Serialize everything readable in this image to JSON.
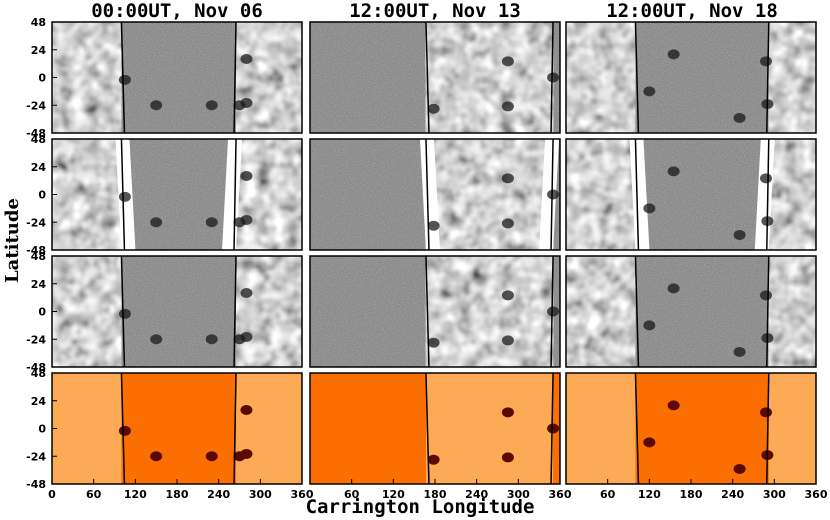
{
  "figure": {
    "column_titles": [
      "00:00UT, Nov 06",
      "12:00UT, Nov 13",
      "12:00UT, Nov 18"
    ],
    "ylabel": "Latitude",
    "xlabel": "Carrington Longitude"
  },
  "chart_data": {
    "type": "heatmap",
    "xlabel": "Carrington Longitude",
    "ylabel": "Latitude",
    "xlim": [
      0,
      360
    ],
    "ylim": [
      -48,
      48
    ],
    "y_ticks": [
      "48",
      "24",
      "0",
      "-24",
      "-48"
    ],
    "x_ticks_by_column": [
      [
        "0",
        "60",
        "120",
        "180",
        "240",
        "300",
        "360"
      ],
      [
        "60",
        "120",
        "180",
        "240",
        "300",
        "360"
      ],
      [
        "60",
        "120",
        "180",
        "240",
        "300",
        "360"
      ]
    ],
    "rows": 4,
    "columns": 3,
    "row_colormaps": [
      "gray",
      "gray",
      "gray",
      "orange"
    ],
    "panels_note_boundaries_lon": [
      [
        100,
        265
      ],
      [
        167,
        350
      ],
      [
        100,
        292
      ]
    ],
    "active_regions_lon_lat": [
      [
        [
          280,
          16
        ],
        [
          280,
          -22
        ],
        [
          270,
          -24
        ],
        [
          105,
          -2
        ],
        [
          150,
          -24
        ],
        [
          230,
          -24
        ]
      ],
      [
        [
          285,
          14
        ],
        [
          285,
          -25
        ],
        [
          178,
          -27
        ],
        [
          350,
          0
        ]
      ],
      [
        [
          288,
          14
        ],
        [
          290,
          -23
        ],
        [
          120,
          -12
        ],
        [
          155,
          20
        ],
        [
          250,
          -35
        ]
      ]
    ]
  },
  "colors": {
    "gray_bg": "#8c8c8c",
    "orange_light": "#fcaa55",
    "orange_dark": "#fb6f02",
    "spot": "#5a0a00"
  }
}
